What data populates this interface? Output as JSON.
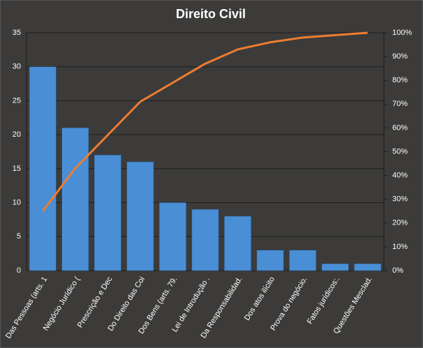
{
  "chart_data": {
    "type": "pareto",
    "title": "Direito  Civil",
    "categories": [
      "Das Pessoas (arts. 1",
      "Negócio Jurídico (",
      "Prescrição e Dec",
      "Do Direito das Coi",
      "Dos Bens (arts. 79.",
      "Lei de Introdução .",
      "Da Responsabilidad.",
      "Dos atos ilícito",
      "Prova do negócio.",
      "Fatos jurídicos:.",
      "Questões Mesclad."
    ],
    "series": [
      {
        "type": "bar",
        "color": "#4a8fd6",
        "values": [
          30,
          21,
          17,
          16,
          10,
          9,
          8,
          3,
          3,
          1,
          1
        ]
      },
      {
        "type": "line",
        "axis": "y2",
        "color": "#ed7d31",
        "values": [
          25,
          43,
          57,
          71,
          79,
          87,
          93,
          96,
          98,
          99,
          100
        ]
      }
    ],
    "ylim": [
      0,
      35
    ],
    "yticks": [
      0,
      5,
      10,
      15,
      20,
      25,
      30,
      35
    ],
    "y2lim": [
      0,
      100
    ],
    "y2ticks": [
      {
        "value": 0,
        "label": "0%"
      },
      {
        "value": 10,
        "label": "10%"
      },
      {
        "value": 20,
        "label": "20%"
      },
      {
        "value": 30,
        "label": "30%"
      },
      {
        "value": 40,
        "label": "40%"
      },
      {
        "value": 50,
        "label": "50%"
      },
      {
        "value": 60,
        "label": "60%"
      },
      {
        "value": 70,
        "label": "70%"
      },
      {
        "value": 80,
        "label": "80%"
      },
      {
        "value": 90,
        "label": "90%"
      },
      {
        "value": 100,
        "label": "100%"
      }
    ],
    "grid": true
  }
}
